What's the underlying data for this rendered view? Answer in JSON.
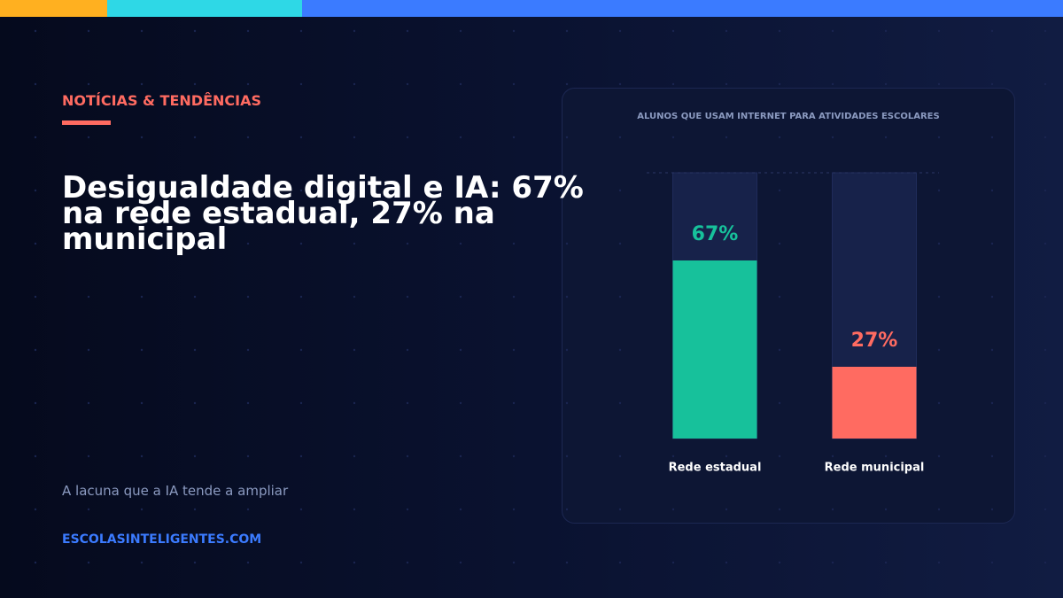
{
  "kicker": "NOTÍCIAS & TENDÊNCIAS",
  "headline": "Desigualdade digital e IA: 67% na rede estadual, 27% na municipal",
  "subtitle": "A lacuna que a IA tende a ampliar",
  "site": "ESCOLASINTELIGENTES.COM",
  "chart_data": {
    "type": "bar",
    "title": "ALUNOS QUE USAM INTERNET PARA ATIVIDADES ESCOLARES",
    "categories": [
      "Rede estadual",
      "Rede municipal"
    ],
    "values": [
      67,
      27
    ],
    "value_labels": [
      "67%",
      "27%"
    ],
    "colors": [
      "#17c19b",
      "#ff6b61"
    ],
    "ylim": [
      0,
      100
    ]
  }
}
